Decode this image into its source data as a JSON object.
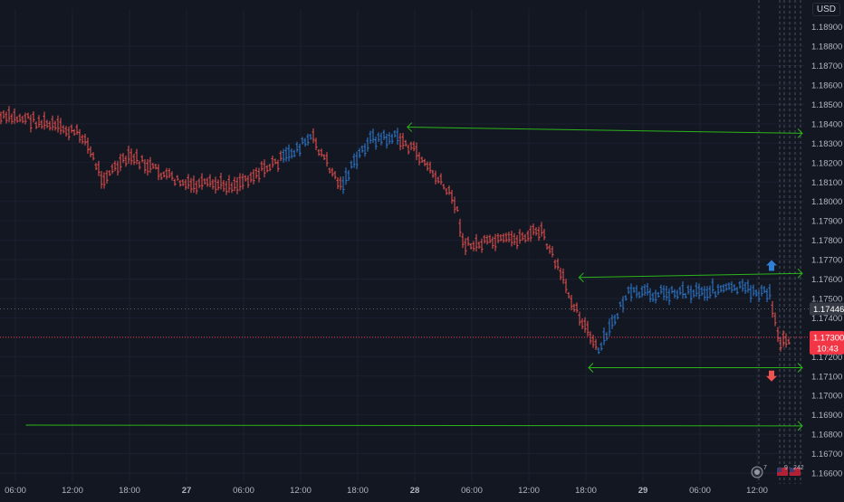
{
  "currency": "USD",
  "colors": {
    "background": "#131722",
    "bear": "#ef5350",
    "bull": "#2f7fd6",
    "trendline": "#2bb51a",
    "grid": "#1c2030",
    "axis_text": "#b2b5be",
    "current_price_label": "#f23645",
    "crosshair_label": "#363a45"
  },
  "price_axis": {
    "ticks": [
      "1.18900",
      "1.18800",
      "1.18700",
      "1.18600",
      "1.18500",
      "1.18400",
      "1.18300",
      "1.18200",
      "1.18100",
      "1.18000",
      "1.17900",
      "1.17800",
      "1.17700",
      "1.17600",
      "1.17500",
      "1.17400",
      "1.17200",
      "1.17100",
      "1.17000",
      "1.16900",
      "1.16800",
      "1.16700",
      "1.16600"
    ]
  },
  "time_axis": {
    "ticks": [
      "06:00",
      "12:00",
      "18:00",
      "27",
      "06:00",
      "12:00",
      "18:00",
      "28",
      "06:00",
      "12:00",
      "18:00",
      "29",
      "06:00",
      "12:00"
    ]
  },
  "labels": {
    "crosshair_price": "1.17446",
    "current_price": "1.17300",
    "countdown": "10:43"
  },
  "bottom_badges": {
    "alerts": "7",
    "events_a": "9",
    "events_b": "242"
  },
  "chart_data": {
    "type": "ohlc",
    "symbol_currency": "USD",
    "ylim": [
      1.1655,
      1.1903
    ],
    "x_range": [
      "26 ~03:00",
      "29 ~17:00"
    ],
    "grid": false,
    "bar_color_rule": "blue when price above recent range, red otherwise",
    "price_path": [
      {
        "time": "26 03:00",
        "price": 1.1843,
        "trend": "bear"
      },
      {
        "time": "26 09:00",
        "price": 1.1834,
        "trend": "bear"
      },
      {
        "time": "26 11:00",
        "price": 1.1812,
        "trend": "bear"
      },
      {
        "time": "26 14:00",
        "price": 1.1823,
        "trend": "bear"
      },
      {
        "time": "26 17:00",
        "price": 1.1815,
        "trend": "bear"
      },
      {
        "time": "26 20:00",
        "price": 1.1808,
        "trend": "bear"
      },
      {
        "time": "27 01:00",
        "price": 1.1809,
        "trend": "bear"
      },
      {
        "time": "27 06:00",
        "price": 1.1822,
        "trend": "bear"
      },
      {
        "time": "27 09:00",
        "price": 1.1833,
        "trend": "bull"
      },
      {
        "time": "27 12:00",
        "price": 1.1808,
        "trend": "bear"
      },
      {
        "time": "27 15:00",
        "price": 1.1832,
        "trend": "bull"
      },
      {
        "time": "27 18:00",
        "price": 1.1833,
        "trend": "bull"
      },
      {
        "time": "27 20:00",
        "price": 1.1825,
        "trend": "bear"
      },
      {
        "time": "28 00:00",
        "price": 1.18,
        "trend": "bear"
      },
      {
        "time": "28 01:00",
        "price": 1.1777,
        "trend": "bear"
      },
      {
        "time": "28 06:00",
        "price": 1.178,
        "trend": "bear"
      },
      {
        "time": "28 09:00",
        "price": 1.1785,
        "trend": "bear"
      },
      {
        "time": "28 12:00",
        "price": 1.1752,
        "trend": "bear"
      },
      {
        "time": "28 15:00",
        "price": 1.1722,
        "trend": "bear"
      },
      {
        "time": "28 18:00",
        "price": 1.1752,
        "trend": "bull"
      },
      {
        "time": "29 06:00",
        "price": 1.1755,
        "trend": "bull"
      },
      {
        "time": "29 09:00",
        "price": 1.1752,
        "trend": "bull"
      },
      {
        "time": "29 10:00",
        "price": 1.1728,
        "trend": "bear"
      },
      {
        "time": "29 11:00",
        "price": 1.173,
        "trend": "bear"
      }
    ],
    "drawn_lines": [
      {
        "name": "upper-resistance",
        "from": {
          "time": "27 19:00",
          "price": 1.18383
        },
        "to": {
          "time": "29 ~17:00",
          "price": 1.18351
        }
      },
      {
        "name": "channel-top",
        "from": {
          "time": "28 13:00",
          "price": 1.17608
        },
        "to": {
          "time": "29 ~17:00",
          "price": 1.17629
        }
      },
      {
        "name": "channel-bottom",
        "from": {
          "time": "28 14:00",
          "price": 1.17143
        },
        "to": {
          "time": "29 ~17:00",
          "price": 1.17143
        }
      },
      {
        "name": "lower-support",
        "from": {
          "time": "26 ~03:00",
          "price": 1.16847
        },
        "to": {
          "time": "29 ~15:00",
          "price": 1.16843
        }
      }
    ],
    "markers": [
      {
        "type": "arrow-up",
        "price": 1.1767
      },
      {
        "type": "arrow-down",
        "price": 1.171
      }
    ],
    "price_labels": {
      "crosshair": 1.17446,
      "last": 1.173
    }
  }
}
